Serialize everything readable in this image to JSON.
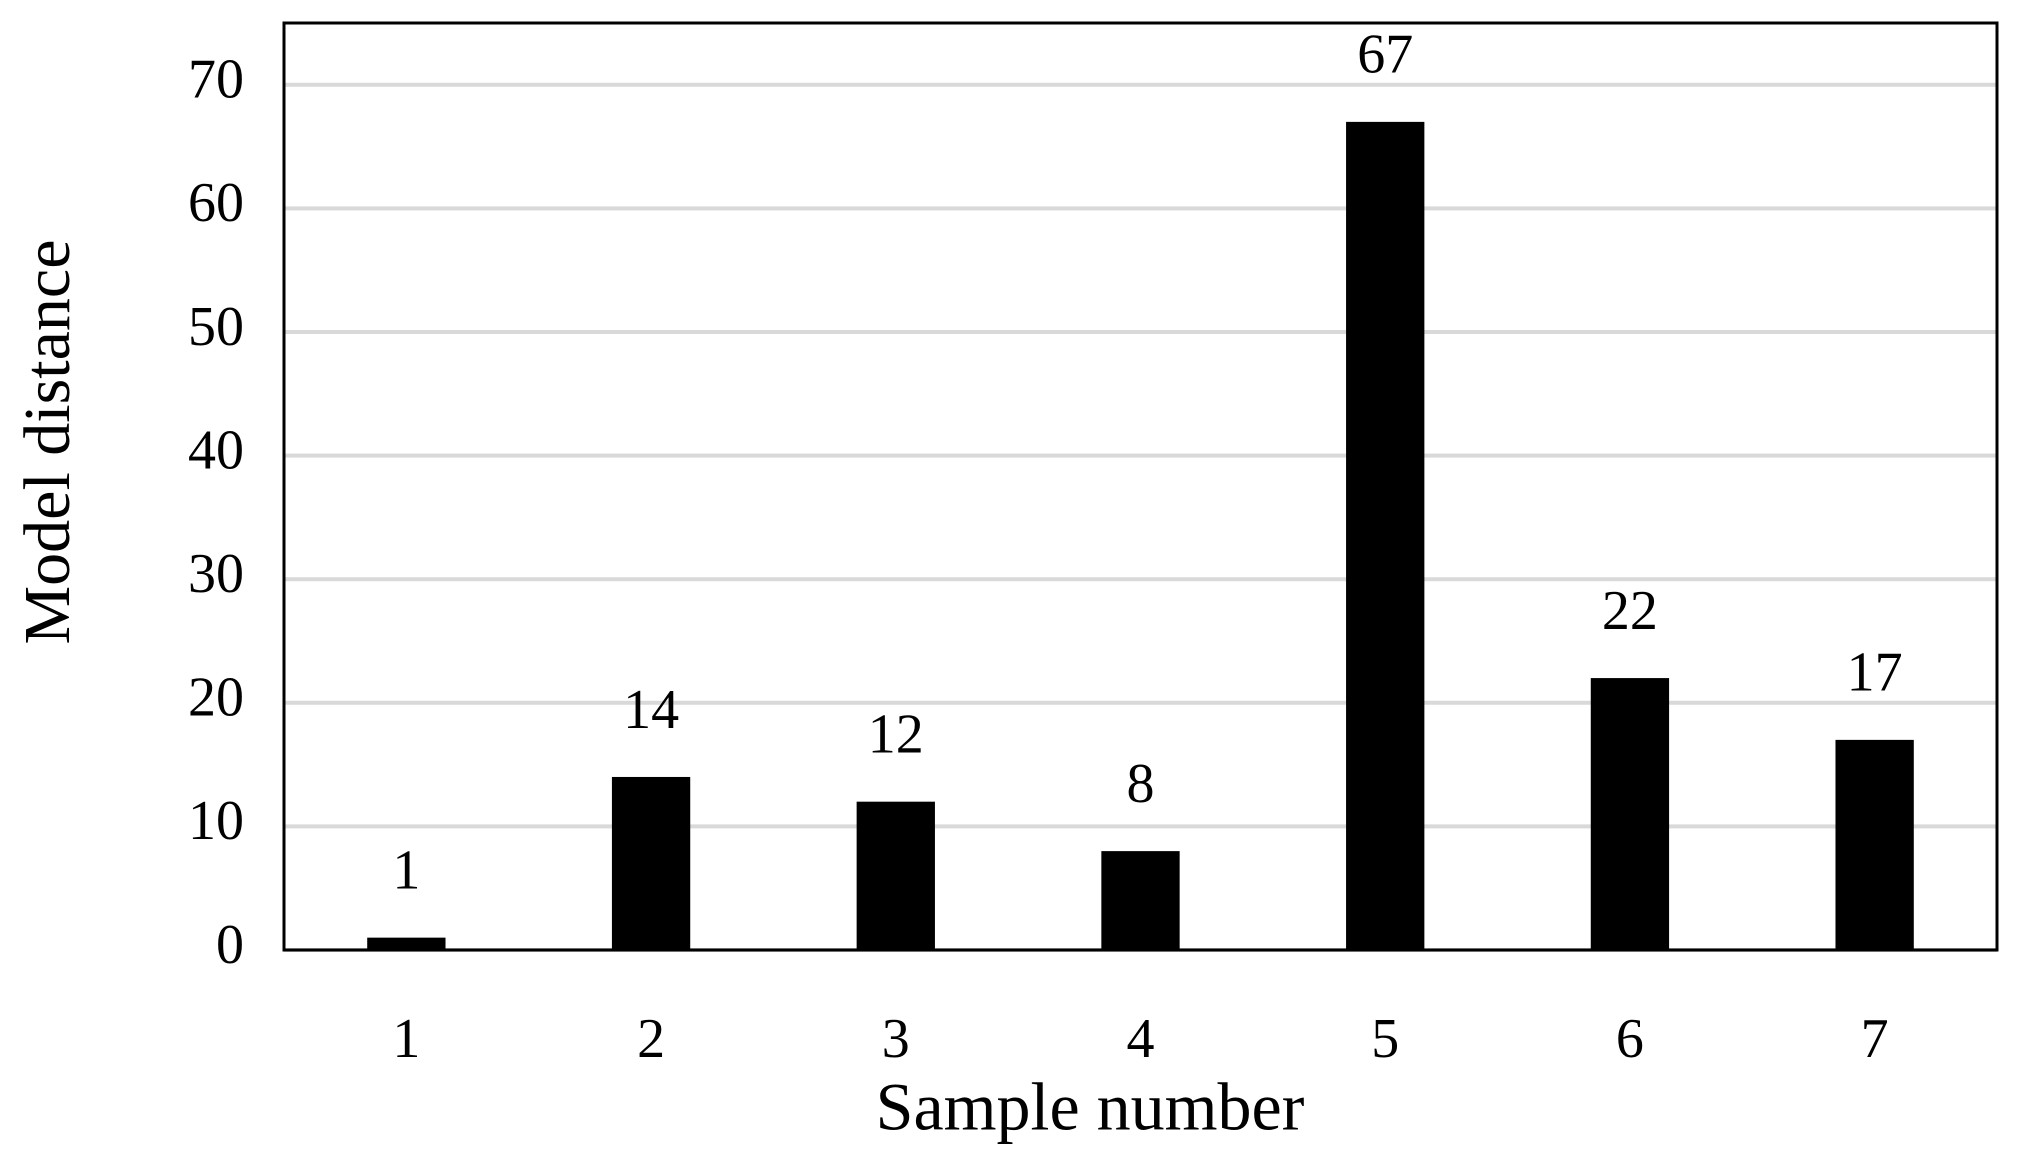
{
  "chart_data": {
    "type": "bar",
    "x_label": "Sample number",
    "y_label": "Model distance",
    "categories": [
      "1",
      "2",
      "3",
      "4",
      "5",
      "6",
      "7"
    ],
    "values": [
      1,
      14,
      12,
      8,
      67,
      22,
      17
    ],
    "color": "#000000",
    "ylim": [
      0,
      75
    ],
    "yticks": [
      0,
      10,
      20,
      30,
      40,
      50,
      60,
      70
    ],
    "grid": true
  }
}
